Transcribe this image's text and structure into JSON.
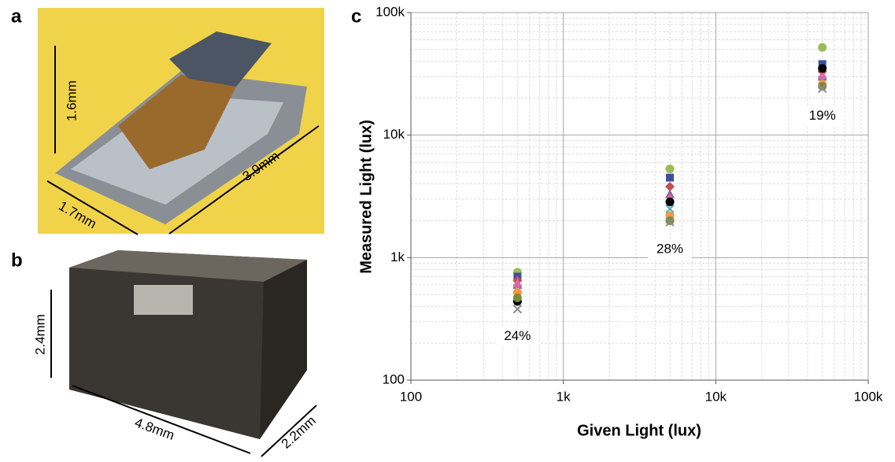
{
  "figure": {
    "panel_labels": [
      "a",
      "b",
      "c"
    ],
    "dimensions_a": [
      "1.6mm",
      "1.7mm",
      "3.9mm"
    ],
    "dimensions_b": [
      "2.4mm",
      "4.8mm",
      "2.2mm"
    ]
  },
  "chart_data": {
    "type": "scatter",
    "xlabel": "Given Light (lux)",
    "ylabel": "Measured Light (lux)",
    "xscale": "log",
    "yscale": "log",
    "grid": true,
    "minor_grid": true,
    "xlim": [
      100,
      100000
    ],
    "ylim": [
      100,
      100000
    ],
    "xticks": [
      100,
      {
        "value": 1000,
        "label": "1k"
      },
      {
        "value": 10000,
        "label": "10k"
      },
      {
        "value": 100000,
        "label": "100k"
      }
    ],
    "yticks": [
      100,
      {
        "value": 1000,
        "label": "1k"
      },
      {
        "value": 10000,
        "label": "10k"
      },
      {
        "value": 100000,
        "label": "100k"
      }
    ],
    "x": [
      500,
      5000,
      50000
    ],
    "series": [
      {
        "color": "#9bbb59",
        "marker": "circle",
        "values": [
          760,
          5300,
          52000
        ]
      },
      {
        "color": "#3f4fa0",
        "marker": "square",
        "values": [
          700,
          4500,
          38000
        ]
      },
      {
        "color": "#c0504d",
        "marker": "diamond",
        "values": [
          650,
          3800,
          33000
        ]
      },
      {
        "color": "#8064a2",
        "marker": "triangle",
        "values": [
          600,
          3300,
          30000
        ]
      },
      {
        "color": "#4bacc6",
        "marker": "x",
        "values": [
          560,
          2500,
          28000
        ]
      },
      {
        "color": "#f79646",
        "marker": "circle",
        "values": [
          520,
          2200,
          26000
        ]
      },
      {
        "color": "#e066a8",
        "marker": "triangle",
        "values": [
          620,
          3100,
          31000
        ]
      },
      {
        "color": "#000000",
        "marker": "circle",
        "values": [
          440,
          2850,
          35000
        ]
      },
      {
        "color": "#7a8a3a",
        "marker": "circle",
        "values": [
          470,
          2000,
          25000
        ]
      },
      {
        "color": "#8c8c8c",
        "marker": "x",
        "values": [
          380,
          1950,
          24000
        ]
      }
    ],
    "annotations": [
      "24%",
      "28%",
      "19%"
    ]
  }
}
